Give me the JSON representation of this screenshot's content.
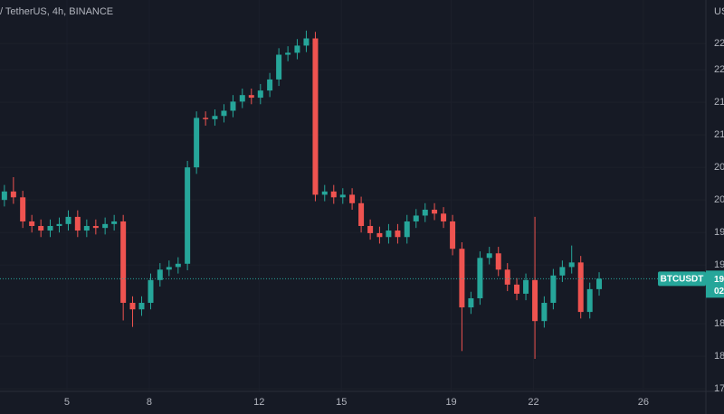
{
  "chart_data": {
    "type": "candlestick",
    "title": "/ TetherUS, 4h, BINANCE",
    "y_axis_label": "US",
    "symbol_label": "BTCUSDT",
    "price_label_lines": [
      "19",
      "02"
    ],
    "x": [
      2.72,
      3.05,
      3.39,
      3.72,
      4.05,
      4.39,
      4.72,
      5.05,
      5.39,
      5.72,
      6.05,
      6.39,
      6.72,
      7.05,
      7.39,
      7.72,
      8.05,
      8.39,
      8.72,
      9.05,
      9.39,
      9.72,
      10.05,
      10.39,
      10.72,
      11.05,
      11.39,
      11.72,
      12.05,
      12.39,
      12.72,
      13.05,
      13.39,
      13.72,
      14.05,
      14.39,
      14.72,
      15.05,
      15.39,
      15.72,
      16.05,
      16.39,
      16.72,
      17.05,
      17.39,
      17.72,
      18.05,
      18.39,
      18.72,
      19.05,
      19.39,
      19.72,
      20.05,
      20.39,
      20.72,
      21.05,
      21.39,
      21.72,
      22.05,
      22.39,
      22.72,
      23.05,
      23.39,
      23.72,
      24.05,
      24.39
    ],
    "open": [
      20.4,
      20.53,
      20.44,
      20.07,
      20.0,
      19.93,
      20.0,
      20.03,
      20.14,
      19.93,
      20.0,
      19.97,
      20.03,
      20.07,
      18.82,
      18.72,
      18.82,
      19.17,
      19.33,
      19.37,
      19.42,
      20.9,
      21.66,
      21.64,
      21.69,
      21.77,
      21.91,
      22.01,
      21.97,
      22.08,
      22.25,
      22.63,
      22.66,
      22.77,
      22.88,
      20.48,
      20.53,
      20.44,
      20.48,
      20.35,
      20.0,
      19.89,
      19.83,
      19.93,
      19.83,
      20.07,
      20.16,
      20.25,
      20.19,
      20.07,
      19.65,
      18.75,
      18.89,
      19.51,
      19.58,
      19.33,
      19.1,
      18.96,
      19.17,
      18.54,
      18.82,
      19.24,
      19.37,
      19.44,
      18.68,
      19.03
    ],
    "high": [
      20.63,
      20.75,
      20.54,
      20.17,
      20.1,
      20.1,
      20.13,
      20.24,
      20.24,
      20.1,
      20.1,
      20.13,
      20.17,
      20.17,
      18.92,
      18.92,
      19.27,
      19.43,
      19.47,
      19.52,
      21.0,
      21.76,
      21.76,
      21.79,
      21.87,
      22.01,
      22.11,
      22.11,
      22.18,
      22.35,
      22.73,
      22.76,
      22.87,
      23.0,
      22.98,
      20.63,
      20.63,
      20.58,
      20.58,
      20.45,
      20.1,
      19.99,
      20.03,
      20.03,
      20.17,
      20.26,
      20.35,
      20.35,
      20.29,
      20.17,
      19.75,
      18.99,
      19.61,
      19.68,
      19.68,
      19.43,
      19.2,
      19.27,
      20.14,
      18.92,
      19.34,
      19.47,
      19.7,
      19.54,
      19.13,
      19.29
    ],
    "low": [
      20.3,
      20.34,
      19.97,
      19.9,
      19.83,
      19.83,
      19.9,
      19.93,
      19.83,
      19.83,
      19.87,
      19.87,
      19.93,
      18.55,
      18.45,
      18.62,
      18.72,
      19.07,
      19.23,
      19.27,
      19.32,
      20.8,
      21.54,
      21.54,
      21.59,
      21.67,
      21.81,
      21.87,
      21.87,
      21.98,
      22.15,
      22.53,
      22.56,
      22.67,
      20.38,
      20.38,
      20.34,
      20.34,
      20.25,
      19.9,
      19.79,
      19.73,
      19.73,
      19.73,
      19.73,
      19.97,
      20.06,
      20.09,
      19.97,
      19.55,
      18.08,
      18.65,
      18.79,
      19.41,
      19.23,
      19.0,
      18.86,
      18.86,
      17.96,
      18.44,
      18.72,
      19.14,
      19.27,
      18.58,
      18.58,
      18.93
    ],
    "close": [
      20.53,
      20.44,
      20.07,
      20.0,
      19.93,
      20.0,
      20.03,
      20.14,
      19.93,
      20.0,
      19.97,
      20.03,
      20.07,
      18.82,
      18.72,
      18.82,
      19.17,
      19.33,
      19.37,
      19.42,
      20.9,
      21.66,
      21.64,
      21.69,
      21.77,
      21.91,
      22.01,
      21.97,
      22.08,
      22.25,
      22.63,
      22.66,
      22.77,
      22.88,
      20.48,
      20.53,
      20.44,
      20.48,
      20.35,
      20.0,
      19.89,
      19.83,
      19.93,
      19.83,
      20.07,
      20.16,
      20.25,
      20.19,
      20.07,
      19.65,
      18.75,
      18.89,
      19.51,
      19.58,
      19.33,
      19.1,
      18.96,
      19.17,
      18.54,
      18.82,
      19.24,
      19.37,
      19.44,
      18.68,
      19.03,
      19.19
    ],
    "up_color": "#26a69a",
    "down_color": "#ef5350",
    "xlim": [
      2.56,
      28.28
    ],
    "ylim": [
      17.46,
      23.47
    ],
    "xticks": [
      5,
      8,
      12,
      15,
      19,
      22,
      26
    ],
    "yticks": [
      {
        "value": 22.8,
        "label": "22"
      },
      {
        "value": 22.4,
        "label": "22"
      },
      {
        "value": 21.9,
        "label": "21"
      },
      {
        "value": 21.4,
        "label": "21"
      },
      {
        "value": 20.9,
        "label": "20"
      },
      {
        "value": 20.4,
        "label": "20"
      },
      {
        "value": 19.9,
        "label": "19"
      },
      {
        "value": 19.4,
        "label": "19"
      },
      {
        "value": 18.5,
        "label": "18"
      },
      {
        "value": 18.0,
        "label": "18"
      },
      {
        "value": 17.5,
        "label": "17"
      }
    ],
    "grid": true
  }
}
